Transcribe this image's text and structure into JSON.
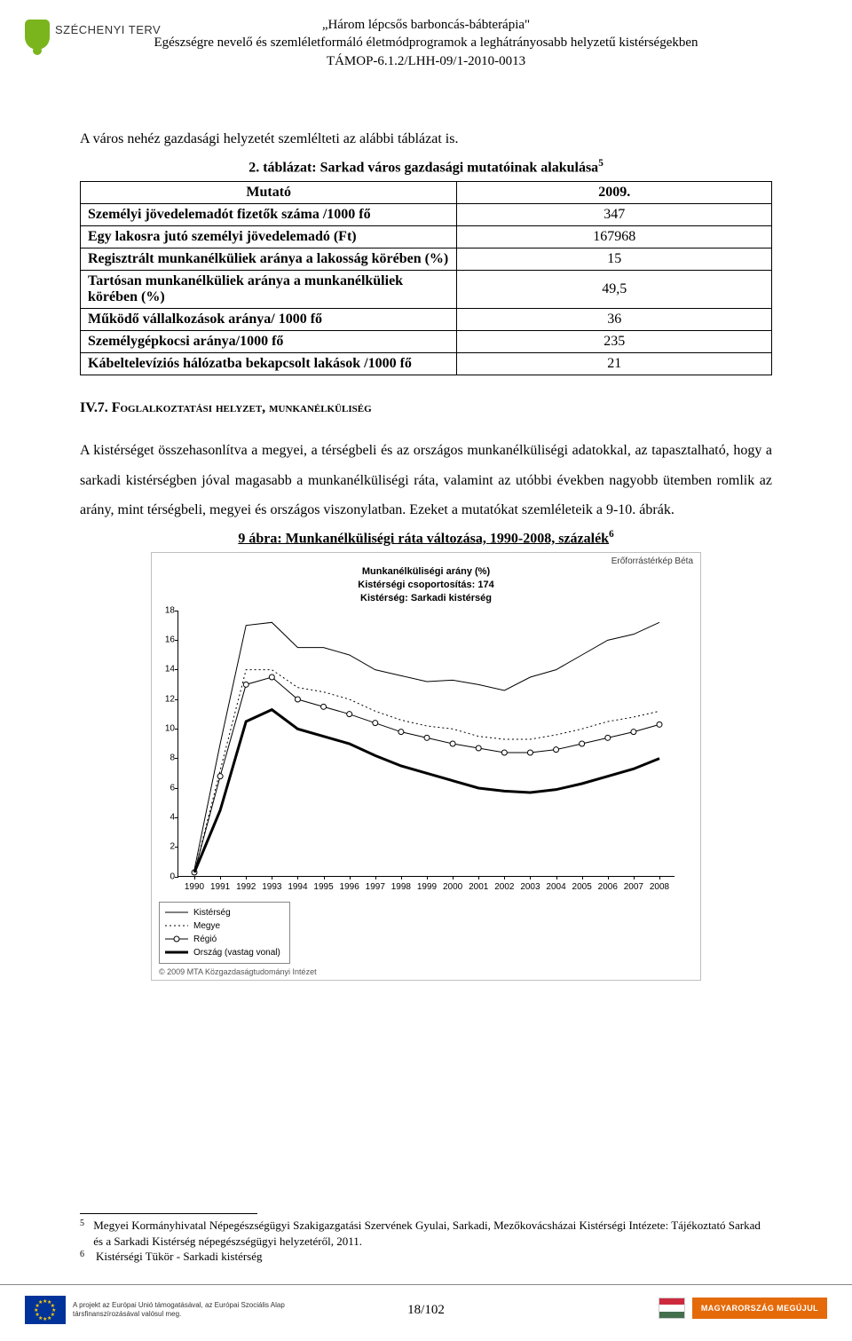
{
  "header": {
    "logo_text": "SZÉCHENYI TERV",
    "line1": "„Három lépcsős barboncás-bábterápia\"",
    "line2": "Egészségre nevelő és szemléletformáló életmódprogramok a leghátrányosabb helyzetű kistérségekben",
    "line3": "TÁMOP-6.1.2/LHH-09/1-2010-0013"
  },
  "intro_para": "A város nehéz gazdasági helyzetét szemlélteti az alábbi táblázat is.",
  "table": {
    "caption": "2. táblázat: Sarkad város gazdasági mutatóinak alakulása",
    "caption_sup": "5",
    "header_left": "Mutató",
    "header_right": "2009.",
    "rows": [
      {
        "label": "Személyi jövedelemadót fizetők száma /1000 fő",
        "value": "347"
      },
      {
        "label": "Egy lakosra jutó személyi jövedelemadó (Ft)",
        "value": "167968"
      },
      {
        "label": "Regisztrált munkanélküliek aránya a lakosság körében (%)",
        "value": "15"
      },
      {
        "label": "Tartósan munkanélküliek aránya a munkanélküliek körében (%)",
        "value": "49,5"
      },
      {
        "label": "Működő vállalkozások aránya/ 1000 fő",
        "value": "36"
      },
      {
        "label": "Személygépkocsi aránya/1000 fő",
        "value": "235"
      },
      {
        "label": "Kábeltelevíziós hálózatba bekapcsolt lakások /1000 fő",
        "value": "21"
      }
    ]
  },
  "section_heading": "IV.7.    Foglalkoztatási helyzet, munkanélküliség",
  "body_para": "A kistérséget összehasonlítva a megyei, a térségbeli és az országos munkanélküliségi adatokkal, az tapasztalható, hogy a sarkadi kistérségben jóval magasabb a munkanélküliségi ráta, valamint az utóbbi években nagyobb ütemben romlik az arány, mint térségbeli, megyei és országos viszonylatban. Ezeket a mutatókat szemléleteik a 9-10. ábrák.",
  "figure_caption": "9 ábra: Munkanélküliségi ráta változása, 1990-2008, százalék",
  "figure_caption_sup": "6",
  "chart": {
    "source_label": "Erőforrástérkép Béta",
    "title_lines": [
      "Munkanélküliségi arány (%)",
      "Kistérségi csoportosítás: 174",
      "Kistérség: Sarkadi kistérség"
    ],
    "ylim": [
      0,
      18
    ],
    "ytick_step": 2,
    "x_categories": [
      "1990",
      "1991",
      "1992",
      "1993",
      "1994",
      "1995",
      "1996",
      "1997",
      "1998",
      "1999",
      "2000",
      "2001",
      "2002",
      "2003",
      "2004",
      "2005",
      "2006",
      "2007",
      "2008"
    ],
    "series": [
      {
        "name": "Kistérség",
        "style": "thin-solid",
        "color": "#000000",
        "width": 1,
        "dash": "",
        "marker": "",
        "values": [
          0.5,
          9.0,
          17.0,
          17.2,
          15.5,
          15.5,
          15.0,
          14.0,
          13.6,
          13.2,
          13.3,
          13.0,
          12.6,
          13.5,
          14.0,
          15.0,
          16.0,
          16.4,
          17.2
        ]
      },
      {
        "name": "Megye",
        "style": "dotted",
        "color": "#000000",
        "width": 1,
        "dash": "2,3",
        "marker": "",
        "values": [
          0.3,
          7.2,
          14.0,
          14.0,
          12.8,
          12.5,
          12.0,
          11.2,
          10.6,
          10.2,
          10.0,
          9.5,
          9.3,
          9.3,
          9.6,
          10.0,
          10.5,
          10.8,
          11.2
        ]
      },
      {
        "name": "Régió",
        "style": "open-circles",
        "color": "#000000",
        "width": 1,
        "dash": "",
        "marker": "circle",
        "values": [
          0.3,
          6.8,
          13.0,
          13.5,
          12.0,
          11.5,
          11.0,
          10.4,
          9.8,
          9.4,
          9.0,
          8.7,
          8.4,
          8.4,
          8.6,
          9.0,
          9.4,
          9.8,
          10.3
        ]
      },
      {
        "name": "Ország",
        "style": "thick-solid",
        "color": "#000000",
        "width": 3,
        "dash": "",
        "marker": "",
        "values": [
          0.3,
          4.5,
          10.5,
          11.3,
          10.0,
          9.5,
          9.0,
          8.2,
          7.5,
          7.0,
          6.5,
          6.0,
          5.8,
          5.7,
          5.9,
          6.3,
          6.8,
          7.3,
          8.0
        ]
      }
    ],
    "legend": [
      {
        "key": "Kistérség",
        "style": "thin-solid"
      },
      {
        "key": "Megye",
        "style": "dotted"
      },
      {
        "key": "Régió",
        "style": "open-circles"
      },
      {
        "key": "Ország (vastag vonal)",
        "style": "thick-solid"
      }
    ],
    "legend_prefix": "— ",
    "copyright": "© 2009 MTA Közgazdaságtudományi Intézet",
    "background_color": "#ffffff",
    "axis_color": "#000000",
    "label_fontsize": 10
  },
  "footnotes": {
    "fn5": "Megyei Kormányhivatal Népegészségügyi Szakigazgatási Szervének Gyulai, Sarkadi, Mezőkovácsházai Kistérségi Intézete: Tájékoztató Sarkad és a Sarkadi Kistérség népegészségügyi helyzetéről, 2011.",
    "fn6": "Kistérségi Tükör - Sarkadi kistérség"
  },
  "footer": {
    "eu_text": "A projekt az Európai Unió támogatásával, az Európai Szociális Alap társfinanszírozásával valósul meg.",
    "page": "18/102",
    "right_badge": "MAGYARORSZÁG MEGÚJUL",
    "hu_colors": [
      "#cd2a3e",
      "#ffffff",
      "#436f4d"
    ],
    "eu_blue": "#003399",
    "eu_gold": "#ffcc00",
    "badge_bg": "#e46a0a"
  }
}
